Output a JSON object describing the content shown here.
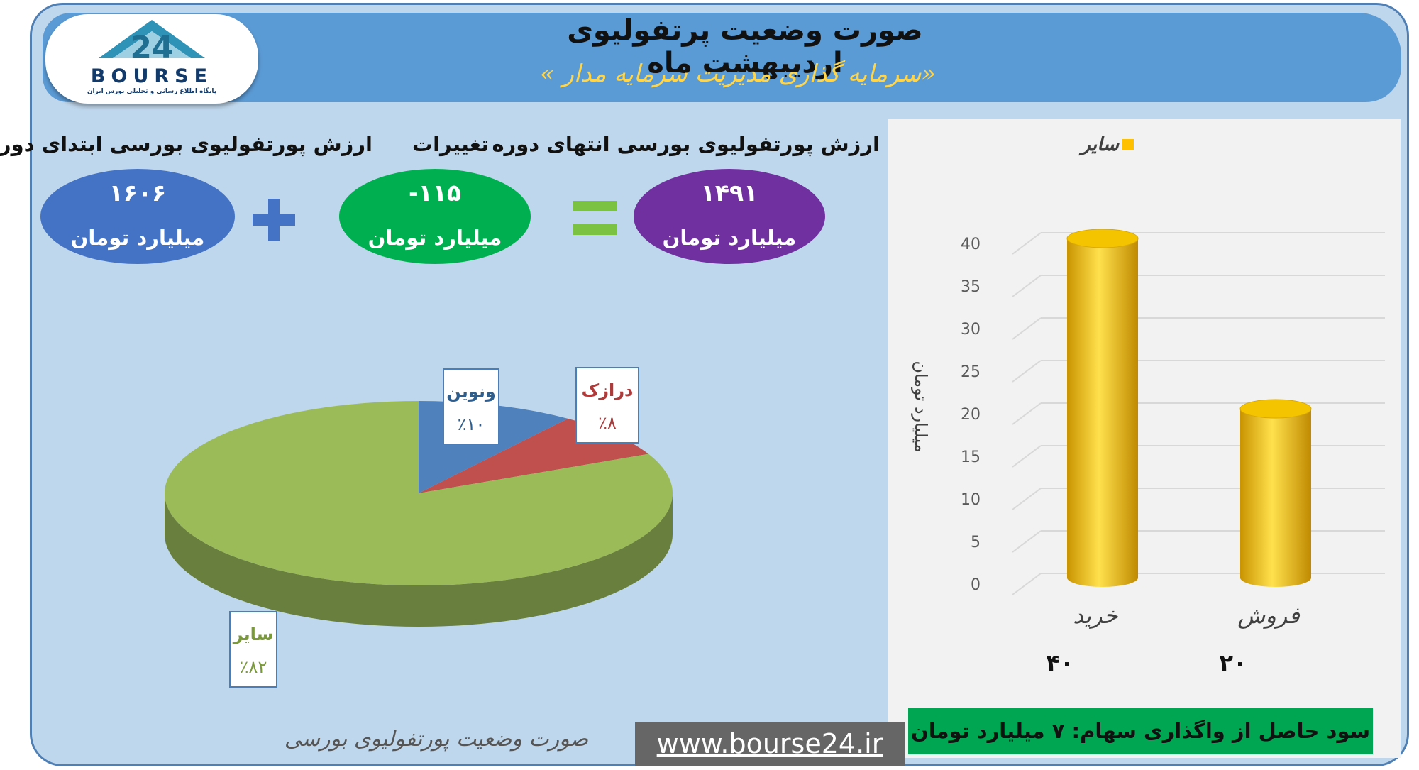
{
  "header": {
    "title": "صورت وضعیت پرتفولیوی اردیبهشت ماه",
    "subtitle": "«سرمایه گذاری مدیریت سرمایه مدار »"
  },
  "logo": {
    "text": "BOURSE",
    "subtext": "پایگاه اطلاع رسانی و تحلیلی بورس ایران"
  },
  "summary": {
    "start_label": "ارزش پورتفولیوی بورسی ابتدای دوره",
    "start_value": "۱۶۰۶",
    "change_label": "تغییرات",
    "change_value": "-۱۱۵",
    "end_label": "ارزش پورتفولیوی بورسی انتهای دوره",
    "end_value": "۱۴۹۱",
    "unit": "میلیارد تومان"
  },
  "pie_caption": "صورت وضعیت پورتفولیوی بورسی",
  "profit_text": "سود حاصل از واگذاری سهام: ۷ میلیارد تومان",
  "website": "www.bourse24.ir",
  "colors": {
    "banner": "#5b9bd5",
    "blue": "#4472c4",
    "green": "#00b050",
    "purple": "#7030a0",
    "bar": "#ffc000"
  },
  "chart_data": [
    {
      "type": "pie",
      "title": "",
      "slices": [
        {
          "label": "ونوین",
          "value": 10,
          "value_label": "٪۱۰",
          "color": "#4f81bd",
          "text_color": "#2e5e8e"
        },
        {
          "label": "درازک",
          "value": 8,
          "value_label": "٪۸",
          "color": "#c0504d",
          "text_color": "#b03a3a"
        },
        {
          "label": "سایر",
          "value": 82,
          "value_label": "٪۸۲",
          "color": "#9bbb59",
          "text_color": "#7a9a3a"
        }
      ]
    },
    {
      "type": "bar",
      "title": "",
      "categories": [
        "خرید",
        "فروش"
      ],
      "series": [
        {
          "name": "سایر",
          "values": [
            40,
            20
          ],
          "color": "#ffc000"
        }
      ],
      "data_labels": [
        "۴۰",
        "۲۰"
      ],
      "ylabel": "میلیارد تومان",
      "ylim": [
        0,
        40
      ],
      "yticks": [
        0,
        5,
        10,
        15,
        20,
        25,
        30,
        35,
        40
      ],
      "legend": "top",
      "grid": true
    }
  ]
}
